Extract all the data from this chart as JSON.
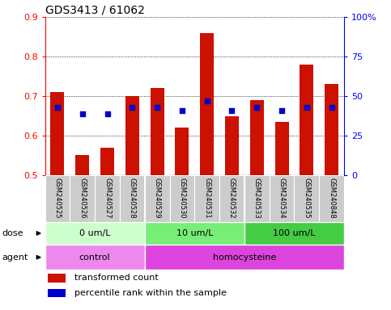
{
  "title": "GDS3413 / 61062",
  "samples": [
    "GSM240525",
    "GSM240526",
    "GSM240527",
    "GSM240528",
    "GSM240529",
    "GSM240530",
    "GSM240531",
    "GSM240532",
    "GSM240533",
    "GSM240534",
    "GSM240535",
    "GSM240848"
  ],
  "transformed_count": [
    0.71,
    0.55,
    0.57,
    0.7,
    0.72,
    0.62,
    0.86,
    0.65,
    0.69,
    0.635,
    0.78,
    0.73
  ],
  "pct_ranks": [
    43,
    39,
    39,
    43,
    43,
    41,
    47,
    41,
    43,
    41,
    43,
    43
  ],
  "bar_color": "#cc1100",
  "dot_color": "#0000cc",
  "ymin": 0.5,
  "ymax": 0.9,
  "yticks_left": [
    0.5,
    0.6,
    0.7,
    0.8,
    0.9
  ],
  "yticks_right": [
    0,
    25,
    50,
    75,
    100
  ],
  "dose_groups": [
    {
      "label": "0 um/L",
      "start": 0,
      "end": 4,
      "color": "#ccffcc"
    },
    {
      "label": "10 um/L",
      "start": 4,
      "end": 8,
      "color": "#77ee77"
    },
    {
      "label": "100 um/L",
      "start": 8,
      "end": 12,
      "color": "#44cc44"
    }
  ],
  "agent_groups": [
    {
      "label": "control",
      "start": 0,
      "end": 4,
      "color": "#ee88ee"
    },
    {
      "label": "homocysteine",
      "start": 4,
      "end": 12,
      "color": "#dd44dd"
    }
  ],
  "dose_label": "dose",
  "agent_label": "agent",
  "legend": [
    {
      "label": "transformed count",
      "color": "#cc1100"
    },
    {
      "label": "percentile rank within the sample",
      "color": "#0000cc"
    }
  ],
  "tick_bg_color": "#cccccc",
  "title_fontsize": 10,
  "axis_fontsize": 8,
  "tick_label_fontsize": 6,
  "row_fontsize": 8,
  "legend_fontsize": 8
}
